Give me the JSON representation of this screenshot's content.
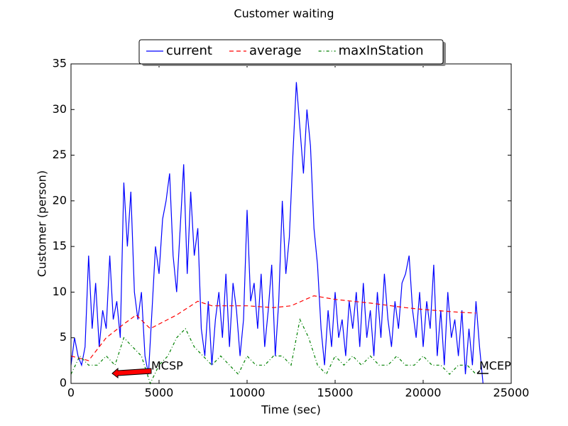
{
  "chart_data": {
    "type": "line",
    "title": "Customer waiting",
    "xlabel": "Time (sec)",
    "ylabel": "Customer (person)",
    "xlim": [
      0,
      25000
    ],
    "xticks": [
      0,
      5000,
      10000,
      15000,
      20000,
      25000
    ],
    "ylim": [
      0,
      35
    ],
    "yticks": [
      0,
      5,
      10,
      15,
      20,
      25,
      30,
      35
    ],
    "legend": "upper center",
    "annotations": [
      "MCSP",
      "MCEP"
    ],
    "series": [
      {
        "name": "current",
        "color": "#0000ff",
        "style": "solid",
        "x": [
          0,
          200,
          400,
          600,
          800,
          1000,
          1200,
          1400,
          1600,
          1800,
          2000,
          2200,
          2400,
          2600,
          2800,
          3000,
          3200,
          3400,
          3600,
          3800,
          4000,
          4200,
          4400,
          4600,
          4800,
          5000,
          5200,
          5400,
          5600,
          5800,
          6000,
          6200,
          6400,
          6600,
          6800,
          7000,
          7200,
          7400,
          7600,
          7800,
          8000,
          8200,
          8400,
          8600,
          8800,
          9000,
          9200,
          9400,
          9600,
          9800,
          10000,
          10200,
          10400,
          10600,
          10800,
          11000,
          11200,
          11400,
          11600,
          11800,
          12000,
          12200,
          12400,
          12600,
          12800,
          13000,
          13200,
          13400,
          13600,
          13800,
          14000,
          14200,
          14400,
          14600,
          14800,
          15000,
          15200,
          15400,
          15600,
          15800,
          16000,
          16200,
          16400,
          16600,
          16800,
          17000,
          17200,
          17400,
          17600,
          17800,
          18000,
          18200,
          18400,
          18600,
          18800,
          19000,
          19200,
          19400,
          19600,
          19800,
          20000,
          20200,
          20400,
          20600,
          20800,
          21000,
          21200,
          21400,
          21600,
          21800,
          22000,
          22200,
          22400,
          22600,
          22800,
          23000,
          23200,
          23400
        ],
        "values": [
          2,
          5,
          3,
          2,
          4,
          14,
          6,
          11,
          4,
          8,
          6,
          14,
          7,
          9,
          5,
          22,
          15,
          21,
          10,
          7,
          10,
          3,
          1,
          8,
          15,
          12,
          18,
          20,
          23,
          14,
          10,
          17,
          24,
          12,
          21,
          14,
          17,
          6,
          3,
          9,
          2,
          7,
          10,
          5,
          12,
          4,
          11,
          8,
          3,
          7,
          19,
          9,
          11,
          6,
          12,
          4,
          8,
          13,
          3,
          9,
          20,
          12,
          16,
          25,
          33,
          28,
          23,
          30,
          26,
          17,
          13,
          6,
          2,
          8,
          4,
          10,
          5,
          7,
          3,
          9,
          6,
          10,
          4,
          11,
          5,
          8,
          3,
          10,
          5,
          12,
          7,
          4,
          9,
          6,
          11,
          12,
          14,
          8,
          5,
          10,
          4,
          9,
          6,
          13,
          3,
          8,
          2,
          10,
          5,
          7,
          3,
          8,
          1,
          6,
          2,
          9,
          4,
          0
        ]
      },
      {
        "name": "average",
        "color": "#ff0000",
        "style": "dashed",
        "x": [
          0,
          1000,
          2000,
          3000,
          3700,
          4500,
          5000,
          6000,
          7200,
          8000,
          10000,
          11500,
          12500,
          13800,
          15000,
          17000,
          19000,
          20000,
          22000,
          23000
        ],
        "values": [
          3,
          2.5,
          5,
          6.5,
          7.5,
          6,
          6.5,
          7.5,
          9,
          8.5,
          8.5,
          8.3,
          8.5,
          9.6,
          9.2,
          8.8,
          8.3,
          8.1,
          7.8,
          7.7
        ]
      },
      {
        "name": "maxInStation",
        "color": "#008000",
        "style": "dashdot",
        "x": [
          0,
          500,
          1000,
          1500,
          2000,
          2500,
          3000,
          3500,
          4000,
          4500,
          5000,
          5500,
          6000,
          6500,
          7000,
          7500,
          8000,
          8500,
          9000,
          9500,
          10000,
          10500,
          11000,
          11500,
          12000,
          12500,
          13000,
          13500,
          14000,
          14500,
          15000,
          15500,
          16000,
          16500,
          17000,
          17500,
          18000,
          18500,
          19000,
          19500,
          20000,
          20500,
          21000,
          21500,
          22000,
          22500,
          23000
        ],
        "values": [
          1,
          3,
          2,
          2,
          3,
          2,
          5,
          4,
          3,
          0,
          2,
          3,
          5,
          6,
          4,
          3,
          2,
          3,
          2,
          1,
          3,
          2,
          2,
          3,
          3,
          2,
          7,
          5,
          2,
          1,
          3,
          2,
          3,
          2,
          3,
          2,
          2,
          3,
          2,
          2,
          3,
          2,
          2,
          1,
          2,
          2,
          1
        ]
      }
    ]
  }
}
